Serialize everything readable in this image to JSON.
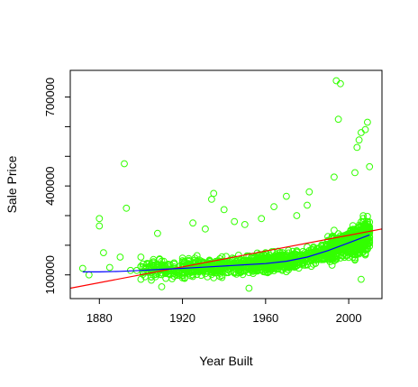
{
  "chart_data": {
    "type": "scatter",
    "title": "",
    "xlabel": "Year Built",
    "ylabel": "Sale Price",
    "xlim": [
      1866,
      2016
    ],
    "ylim": [
      20000,
      790000
    ],
    "x_ticks": [
      {
        "value": 1880,
        "label": "1880"
      },
      {
        "value": 1920,
        "label": "1920"
      },
      {
        "value": 1960,
        "label": "1960"
      },
      {
        "value": 2000,
        "label": "2000"
      }
    ],
    "y_ticks": [
      {
        "value": 100000,
        "label": "100000"
      },
      {
        "value": 400000,
        "label": "400000"
      },
      {
        "value": 700000,
        "label": "700000"
      }
    ],
    "y_minor_ticks": [
      200000,
      300000,
      500000,
      600000
    ],
    "colors": {
      "points": "#33ff00",
      "linear_fit": "#ff0000",
      "smooth_fit": "#0000ff",
      "axes": "#000000"
    },
    "linear_fit": {
      "x": [
        1866,
        2016
      ],
      "y": [
        55000,
        255000
      ]
    },
    "smooth_fit": {
      "x": [
        1872,
        1880,
        1890,
        1900,
        1910,
        1920,
        1930,
        1940,
        1950,
        1960,
        1970,
        1980,
        1990,
        2000,
        2010
      ],
      "y": [
        110000,
        110000,
        112000,
        115000,
        119000,
        122000,
        126000,
        130000,
        134000,
        138000,
        146000,
        160000,
        182000,
        208000,
        235000
      ]
    },
    "points_visible": [
      {
        "x": 1872,
        "y": 122000
      },
      {
        "x": 1875,
        "y": 100000
      },
      {
        "x": 1880,
        "y": 290000
      },
      {
        "x": 1880,
        "y": 265000
      },
      {
        "x": 1882,
        "y": 175000
      },
      {
        "x": 1885,
        "y": 125000
      },
      {
        "x": 1890,
        "y": 160000
      },
      {
        "x": 1892,
        "y": 475000
      },
      {
        "x": 1893,
        "y": 325000
      },
      {
        "x": 1895,
        "y": 115000
      },
      {
        "x": 1898,
        "y": 115000
      },
      {
        "x": 1900,
        "y": 160000
      },
      {
        "x": 1900,
        "y": 85000
      },
      {
        "x": 1908,
        "y": 240000
      },
      {
        "x": 1910,
        "y": 60000
      },
      {
        "x": 1925,
        "y": 275000
      },
      {
        "x": 1931,
        "y": 255000
      },
      {
        "x": 1934,
        "y": 355000
      },
      {
        "x": 1935,
        "y": 375000
      },
      {
        "x": 1940,
        "y": 320000
      },
      {
        "x": 1945,
        "y": 280000
      },
      {
        "x": 1950,
        "y": 270000
      },
      {
        "x": 1952,
        "y": 55000
      },
      {
        "x": 1958,
        "y": 290000
      },
      {
        "x": 1964,
        "y": 330000
      },
      {
        "x": 1970,
        "y": 365000
      },
      {
        "x": 1975,
        "y": 300000
      },
      {
        "x": 1980,
        "y": 335000
      },
      {
        "x": 1981,
        "y": 380000
      },
      {
        "x": 1993,
        "y": 430000
      },
      {
        "x": 1994,
        "y": 755000
      },
      {
        "x": 1996,
        "y": 745000
      },
      {
        "x": 1995,
        "y": 625000
      },
      {
        "x": 2003,
        "y": 445000
      },
      {
        "x": 2004,
        "y": 530000
      },
      {
        "x": 2005,
        "y": 555000
      },
      {
        "x": 2006,
        "y": 580000
      },
      {
        "x": 2008,
        "y": 590000
      },
      {
        "x": 2009,
        "y": 615000
      },
      {
        "x": 2006,
        "y": 85000
      },
      {
        "x": 2010,
        "y": 465000
      }
    ]
  }
}
